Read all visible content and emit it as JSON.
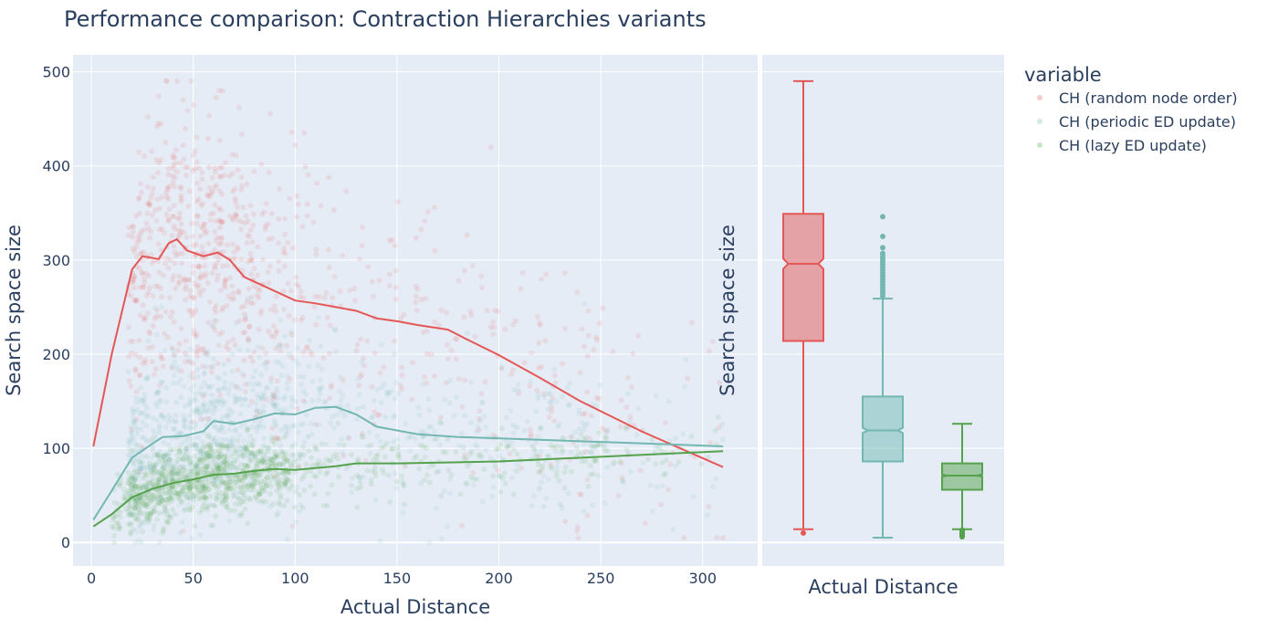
{
  "chart_data": [
    {
      "type": "scatter",
      "title": "Performance comparison: Contraction Hierarchies variants",
      "xlabel": "Actual Distance",
      "ylabel": "Search space size",
      "xlim": [
        -9,
        327
      ],
      "ylim": [
        -25,
        518
      ],
      "x_ticks": [
        0,
        50,
        100,
        150,
        200,
        250,
        300
      ],
      "y_ticks": [
        0,
        100,
        200,
        300,
        400,
        500
      ],
      "grid": true,
      "legend": {
        "title": "variable",
        "placement": "top-right",
        "entries": [
          "CH (random node order)",
          "CH (periodic ED update)",
          "CH (lazy ED update)"
        ]
      },
      "series": [
        {
          "name": "CH (random node order)",
          "color": "#e45756",
          "marker_opacity": 0.12,
          "trend": [
            [
              1,
              102
            ],
            [
              10,
              200
            ],
            [
              20,
              290
            ],
            [
              25,
              304
            ],
            [
              33,
              301
            ],
            [
              38,
              318
            ],
            [
              42,
              322
            ],
            [
              47,
              310
            ],
            [
              55,
              304
            ],
            [
              62,
              308
            ],
            [
              68,
              300
            ],
            [
              75,
              282
            ],
            [
              85,
              272
            ],
            [
              100,
              257
            ],
            [
              110,
              254
            ],
            [
              120,
              250
            ],
            [
              130,
              246
            ],
            [
              140,
              238
            ],
            [
              150,
              235
            ],
            [
              160,
              231
            ],
            [
              175,
              226
            ],
            [
              185,
              215
            ],
            [
              200,
              199
            ],
            [
              220,
              175
            ],
            [
              240,
              150
            ],
            [
              270,
              118
            ],
            [
              310,
              80
            ]
          ]
        },
        {
          "name": "CH (periodic ED update)",
          "color": "#72b7b2",
          "marker_opacity": 0.12,
          "trend": [
            [
              1,
              24
            ],
            [
              10,
              55
            ],
            [
              20,
              90
            ],
            [
              30,
              105
            ],
            [
              35,
              112
            ],
            [
              45,
              113
            ],
            [
              55,
              118
            ],
            [
              60,
              129
            ],
            [
              70,
              126
            ],
            [
              80,
              131
            ],
            [
              90,
              137
            ],
            [
              100,
              136
            ],
            [
              110,
              143
            ],
            [
              120,
              144
            ],
            [
              130,
              136
            ],
            [
              140,
              123
            ],
            [
              160,
              115
            ],
            [
              180,
              112
            ],
            [
              220,
              109
            ],
            [
              260,
              106
            ],
            [
              310,
              102
            ]
          ]
        },
        {
          "name": "CH (lazy ED update)",
          "color": "#54a24b",
          "marker_opacity": 0.12,
          "trend": [
            [
              1,
              17
            ],
            [
              10,
              30
            ],
            [
              20,
              48
            ],
            [
              30,
              57
            ],
            [
              40,
              63
            ],
            [
              50,
              67
            ],
            [
              60,
              72
            ],
            [
              70,
              73
            ],
            [
              80,
              76
            ],
            [
              90,
              78
            ],
            [
              100,
              77
            ],
            [
              110,
              79
            ],
            [
              120,
              81
            ],
            [
              130,
              84
            ],
            [
              150,
              84
            ],
            [
              200,
              86
            ],
            [
              250,
              91
            ],
            [
              310,
              97
            ]
          ]
        }
      ]
    },
    {
      "type": "box",
      "xlabel": "Actual Distance",
      "ylabel": "Search space size",
      "notched": true,
      "ylim": [
        -25,
        518
      ],
      "boxes": [
        {
          "name": "CH (random node order)",
          "color": "#e45756",
          "min": 14,
          "q1": 214,
          "median": 296,
          "q3": 349,
          "max": 490,
          "outliers": [
            10
          ]
        },
        {
          "name": "CH (periodic ED update)",
          "color": "#72b7b2",
          "min": 5,
          "q1": 86,
          "median": 119,
          "q3": 155,
          "max": 259,
          "outliers": [
            262,
            265,
            268,
            271,
            274,
            277,
            280,
            283,
            286,
            289,
            292,
            295,
            298,
            301,
            304,
            307,
            313,
            325,
            346
          ]
        },
        {
          "name": "CH (lazy ED update)",
          "color": "#54a24b",
          "min": 14,
          "q1": 56,
          "median": 71,
          "q3": 84,
          "max": 126,
          "outliers": [
            6,
            7,
            8,
            9,
            10,
            11,
            12,
            13
          ]
        }
      ]
    }
  ]
}
